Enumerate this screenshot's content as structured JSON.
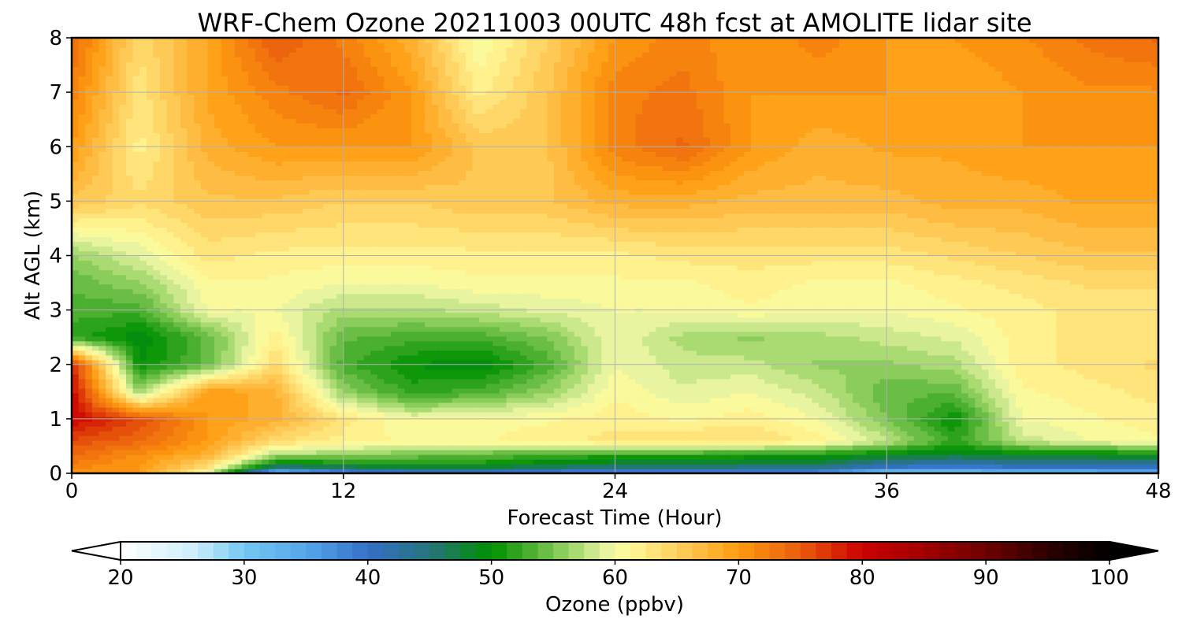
{
  "chart_data": {
    "type": "heatmap",
    "title": "WRF-Chem Ozone  20211003 00UTC 48h fcst at AMOLITE lidar site",
    "xlabel": "Forecast Time (Hour)",
    "ylabel": "Alt AGL (km)",
    "xlim": [
      0,
      48
    ],
    "ylim": [
      0,
      8
    ],
    "xticks": [
      0,
      12,
      24,
      36,
      48
    ],
    "xtick_labels": [
      "0",
      "12",
      "24",
      "36",
      "48"
    ],
    "yticks": [
      0,
      1,
      2,
      3,
      4,
      5,
      6,
      7,
      8
    ],
    "ytick_labels": [
      "0",
      "1",
      "2",
      "3",
      "4",
      "5",
      "6",
      "7",
      "8"
    ],
    "grid": true,
    "colorbar": {
      "label": "Ozone  (ppbv)",
      "range": [
        20,
        100
      ],
      "ticks": [
        20,
        30,
        40,
        50,
        60,
        70,
        80,
        90,
        100
      ],
      "tick_labels": [
        "20",
        "30",
        "40",
        "50",
        "60",
        "70",
        "80",
        "90",
        "100"
      ],
      "extend": "both",
      "orientation": "horizontal",
      "stops": [
        {
          "value": 20,
          "color": "#ffffff"
        },
        {
          "value": 26,
          "color": "#cdeefa"
        },
        {
          "value": 30,
          "color": "#74c7f2"
        },
        {
          "value": 35,
          "color": "#55a6ea"
        },
        {
          "value": 40,
          "color": "#3470c8"
        },
        {
          "value": 45,
          "color": "#26737a"
        },
        {
          "value": 50,
          "color": "#009100"
        },
        {
          "value": 53,
          "color": "#48ad2e"
        },
        {
          "value": 56,
          "color": "#93d160"
        },
        {
          "value": 59,
          "color": "#e3f2a0"
        },
        {
          "value": 61,
          "color": "#fffa9a"
        },
        {
          "value": 65,
          "color": "#ffd060"
        },
        {
          "value": 70,
          "color": "#ff9b10"
        },
        {
          "value": 75,
          "color": "#e95c0c"
        },
        {
          "value": 80,
          "color": "#cc0000"
        },
        {
          "value": 85,
          "color": "#a00000"
        },
        {
          "value": 90,
          "color": "#6e0000"
        },
        {
          "value": 95,
          "color": "#2d0000"
        },
        {
          "value": 100,
          "color": "#000000"
        }
      ]
    },
    "x": [
      0,
      3,
      6,
      9,
      12,
      15,
      18,
      21,
      24,
      27,
      30,
      33,
      36,
      39,
      42,
      45,
      48
    ],
    "y": [
      0,
      0.15,
      0.35,
      0.6,
      1,
      1.5,
      2,
      2.5,
      3,
      3.5,
      4,
      5,
      6,
      7,
      8
    ],
    "z": [
      [
        70,
        70,
        60,
        30,
        36,
        38,
        38,
        37,
        36,
        37,
        37,
        36,
        30,
        30,
        32,
        32,
        33
      ],
      [
        72,
        70,
        64,
        48,
        49,
        50,
        50,
        48,
        47,
        47,
        46,
        46,
        42,
        40,
        42,
        42,
        42
      ],
      [
        74,
        71,
        68,
        57,
        56,
        55,
        54,
        53,
        52,
        52,
        51,
        51,
        49,
        48,
        49,
        49,
        50
      ],
      [
        76,
        74,
        70,
        64,
        62,
        61,
        61,
        62,
        63,
        64,
        64,
        62,
        58,
        52,
        58,
        60,
        61
      ],
      [
        80,
        76,
        70,
        68,
        63,
        60,
        61,
        61,
        62,
        61,
        62,
        60,
        55,
        50,
        60,
        61,
        62
      ],
      [
        80,
        56,
        70,
        68,
        56,
        52,
        53,
        56,
        61,
        59,
        60,
        58,
        54,
        54,
        61,
        62,
        63
      ],
      [
        78,
        50,
        54,
        64,
        53,
        50,
        49,
        53,
        60,
        58,
        58,
        56,
        56,
        57,
        62,
        63,
        64
      ],
      [
        52,
        49,
        54,
        62,
        54,
        53,
        53,
        55,
        60,
        57,
        56,
        57,
        58,
        59,
        62,
        63,
        63
      ],
      [
        53,
        53,
        60,
        60,
        57,
        57,
        58,
        59,
        60,
        60,
        61,
        60,
        60,
        61,
        62,
        63,
        63
      ],
      [
        54,
        56,
        61,
        61,
        60,
        60,
        61,
        61,
        61,
        61,
        62,
        61,
        61,
        62,
        63,
        64,
        64
      ],
      [
        56,
        59,
        63,
        62,
        62,
        62,
        62,
        62,
        62,
        63,
        63,
        63,
        63,
        64,
        65,
        66,
        66
      ],
      [
        66,
        64,
        66,
        66,
        65,
        65,
        66,
        66,
        68,
        68,
        67,
        67,
        67,
        68,
        68,
        69,
        69
      ],
      [
        70,
        62,
        68,
        70,
        70,
        70,
        66,
        66,
        72,
        74,
        70,
        68,
        69,
        69,
        70,
        70,
        70
      ],
      [
        72,
        63,
        69,
        72,
        74,
        70,
        62,
        66,
        72,
        73,
        70,
        70,
        70,
        69,
        70,
        71,
        71
      ],
      [
        74,
        64,
        69,
        75,
        72,
        68,
        60,
        65,
        70,
        72,
        70,
        72,
        70,
        70,
        71,
        73,
        74
      ]
    ]
  }
}
